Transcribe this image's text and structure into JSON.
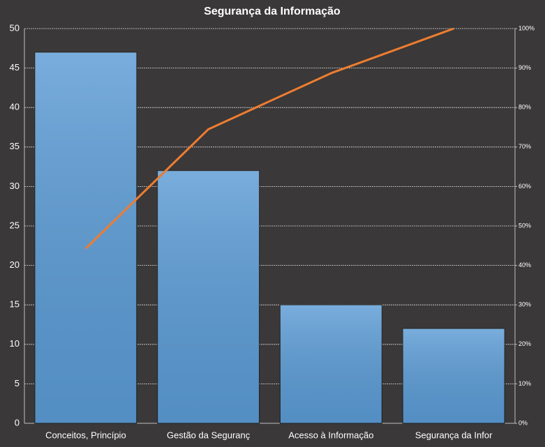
{
  "chart_data": {
    "type": "combo",
    "title": "Segurança da Informação",
    "categories": [
      "Conceitos, Princípio",
      "Gestão da Seguranç",
      "Acesso à Informação",
      "Segurança da Infor"
    ],
    "series": [
      {
        "type": "bar",
        "color": "#5b9bd5",
        "values": [
          47,
          32,
          15,
          12
        ]
      },
      {
        "type": "line",
        "color": "#ed7d31",
        "axis": "y2",
        "values": [
          44.3,
          74.5,
          88.7,
          100
        ]
      }
    ],
    "ylim": [
      0,
      50
    ],
    "yticks": [
      0,
      5,
      10,
      15,
      20,
      25,
      30,
      35,
      40,
      45,
      50
    ],
    "y2lim": [
      0,
      100
    ],
    "y2ticks": [
      {
        "value": 0,
        "label": "0%"
      },
      {
        "value": 10,
        "label": "10%"
      },
      {
        "value": 20,
        "label": "20%"
      },
      {
        "value": 30,
        "label": "30%"
      },
      {
        "value": 40,
        "label": "40%"
      },
      {
        "value": 50,
        "label": "50%"
      },
      {
        "value": 60,
        "label": "60%"
      },
      {
        "value": 70,
        "label": "70%"
      },
      {
        "value": 80,
        "label": "80%"
      },
      {
        "value": 90,
        "label": "90%"
      },
      {
        "value": 100,
        "label": "100%"
      }
    ],
    "grid": true
  }
}
